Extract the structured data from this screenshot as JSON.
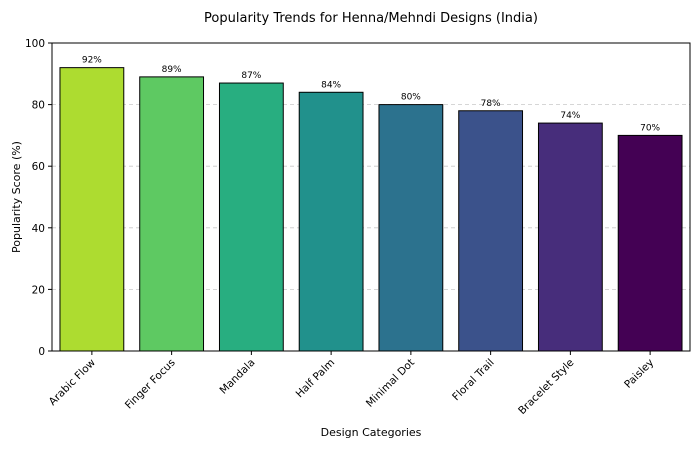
{
  "chart_data": {
    "type": "bar",
    "title": "Popularity Trends for Henna/Mehndi Designs (India)",
    "xlabel": "Design Categories",
    "ylabel": "Popularity Score (%)",
    "categories": [
      "Arabic Flow",
      "Finger Focus",
      "Mandala",
      "Half Palm",
      "Minimal Dot",
      "Floral Trail",
      "Bracelet Style",
      "Paisley"
    ],
    "values": [
      92,
      89,
      87,
      84,
      80,
      78,
      74,
      70
    ],
    "data_labels": [
      "92%",
      "89%",
      "87%",
      "84%",
      "80%",
      "78%",
      "74%",
      "70%"
    ],
    "colors": [
      "#addc30",
      "#5ec962",
      "#28ae80",
      "#21918c",
      "#2c728e",
      "#3b528b",
      "#472d7b",
      "#440154"
    ],
    "ylim": [
      0,
      100
    ],
    "yticks": [
      0,
      20,
      40,
      60,
      80,
      100
    ],
    "grid": "y-dashed",
    "legend": "none"
  }
}
